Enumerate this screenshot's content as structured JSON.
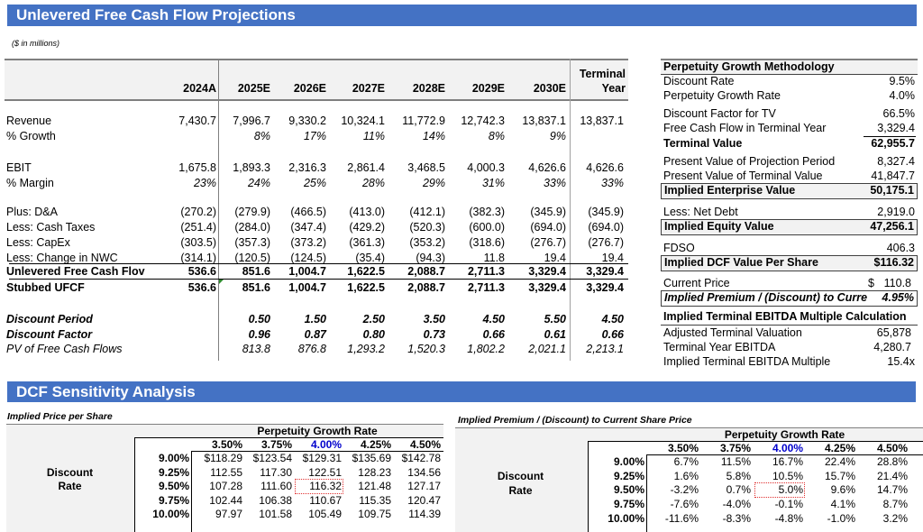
{
  "header": {
    "title": "Unlevered Free Cash Flow Projections",
    "units_note": "($ in millions)"
  },
  "projections": {
    "columns": [
      "2024A",
      "2025E",
      "2026E",
      "2027E",
      "2028E",
      "2029E",
      "2030E"
    ],
    "terminal_header": [
      "Terminal",
      "Year"
    ],
    "rows": [
      {
        "label": "Revenue",
        "values": [
          "7,430.7",
          "7,996.7",
          "9,330.2",
          "10,324.1",
          "11,772.9",
          "12,742.3",
          "13,837.1",
          "13,837.1"
        ],
        "style": "normal"
      },
      {
        "label": "% Growth",
        "values": [
          "",
          "8%",
          "17%",
          "11%",
          "14%",
          "8%",
          "9%",
          ""
        ],
        "style": "pct"
      },
      {
        "label": "EBIT",
        "values": [
          "1,675.8",
          "1,893.3",
          "2,316.3",
          "2,861.4",
          "3,468.5",
          "4,000.3",
          "4,626.6",
          "4,626.6"
        ],
        "style": "normal"
      },
      {
        "label": "% Margin",
        "values": [
          "23%",
          "24%",
          "25%",
          "28%",
          "29%",
          "31%",
          "33%",
          "33%"
        ],
        "style": "pct"
      },
      {
        "label": "Plus: D&A",
        "values": [
          "(270.2)",
          "(279.9)",
          "(466.5)",
          "(413.0)",
          "(412.1)",
          "(382.3)",
          "(345.9)",
          "(345.9)"
        ],
        "style": "normal"
      },
      {
        "label": "Less: Cash Taxes",
        "values": [
          "(251.4)",
          "(284.0)",
          "(347.4)",
          "(429.2)",
          "(520.3)",
          "(600.0)",
          "(694.0)",
          "(694.0)"
        ],
        "style": "normal"
      },
      {
        "label": "Less: CapEx",
        "values": [
          "(303.5)",
          "(357.3)",
          "(373.2)",
          "(361.3)",
          "(353.2)",
          "(318.6)",
          "(276.7)",
          "(276.7)"
        ],
        "style": "normal"
      },
      {
        "label": "Less: Change in NWC",
        "values": [
          "(314.1)",
          "(120.5)",
          "(124.5)",
          "(35.4)",
          "(94.3)",
          "11.8",
          "19.4",
          "19.4"
        ],
        "style": "normal"
      },
      {
        "label": "Unlevered Free Cash Flov",
        "values": [
          "536.6",
          "851.6",
          "1,004.7",
          "1,622.5",
          "2,088.7",
          "2,711.3",
          "3,329.4",
          "3,329.4"
        ],
        "style": "bold"
      },
      {
        "label": "Stubbed UFCF",
        "values": [
          "536.6",
          "851.6",
          "1,004.7",
          "1,622.5",
          "2,088.7",
          "2,711.3",
          "3,329.4",
          "3,329.4"
        ],
        "style": "bold"
      },
      {
        "label": "Discount Period",
        "values": [
          "",
          "0.50",
          "1.50",
          "2.50",
          "3.50",
          "4.50",
          "5.50",
          "4.50"
        ],
        "style": "bolditalic"
      },
      {
        "label": "Discount Factor",
        "values": [
          "",
          "0.96",
          "0.87",
          "0.80",
          "0.73",
          "0.66",
          "0.61",
          "0.66"
        ],
        "style": "bolditalic"
      },
      {
        "label": "PV of Free Cash Flows",
        "values": [
          "",
          "813.8",
          "876.8",
          "1,293.2",
          "1,520.3",
          "1,802.2",
          "2,021.1",
          "2,213.1"
        ],
        "style": "italic"
      }
    ]
  },
  "perpetuity": {
    "title": "Perpetuity Growth Methodology",
    "discount_rate": {
      "label": "Discount Rate",
      "value": "9.5%"
    },
    "growth_rate": {
      "label": "Perpetuity Growth Rate",
      "value": "4.0%"
    },
    "discount_factor_tv": {
      "label": "Discount Factor for TV",
      "value": "66.5%"
    },
    "fcf_terminal": {
      "label": "Free Cash Flow in Terminal Year",
      "value": "3,329.4"
    },
    "terminal_value": {
      "label": "Terminal Value",
      "value": "62,955.7"
    },
    "pv_projection": {
      "label": "Present Value of Projection Period",
      "value": "8,327.4"
    },
    "pv_terminal": {
      "label": "Present Value of Terminal Value",
      "value": "41,847.7"
    },
    "enterprise_value": {
      "label": "Implied Enterprise Value",
      "value": "50,175.1"
    },
    "net_debt": {
      "label": "Less: Net Debt",
      "value": "2,919.0"
    },
    "equity_value": {
      "label": "Implied Equity Value",
      "value": "47,256.1"
    },
    "fdso": {
      "label": "FDSO",
      "value": "406.3"
    },
    "value_per_share": {
      "label": "Implied DCF Value Per Share",
      "value": "$116.32"
    },
    "current_price": {
      "label": "Current Price",
      "currency": "$",
      "value": "110.8"
    },
    "premium": {
      "label": "Implied Premium / (Discount) to Curre",
      "value": "4.95%"
    }
  },
  "ebitda_multiple": {
    "title": "Implied Terminal EBITDA Multiple Calculation",
    "adjusted_tv": {
      "label": "Adjusted Terminal Valuation",
      "value": "65,878"
    },
    "terminal_ebitda": {
      "label": "Terminal Year EBITDA",
      "value": "4,280.7"
    },
    "multiple": {
      "label": "Implied Terminal EBITDA Multiple",
      "value": "15.4x"
    }
  },
  "sensitivity": {
    "title": "DCF Sensitivity Analysis",
    "price_table": {
      "title": "Implied Price per Share",
      "col_header": "Perpetuity Growth Rate",
      "row_header": [
        "Discount",
        "Rate"
      ],
      "cols": [
        "3.50%",
        "3.75%",
        "4.00%",
        "4.25%",
        "4.50%"
      ],
      "rows": [
        {
          "rate": "9.00%",
          "values": [
            "$118.29",
            "$123.54",
            "$129.31",
            "$135.69",
            "$142.78"
          ]
        },
        {
          "rate": "9.25%",
          "values": [
            "112.55",
            "117.30",
            "122.51",
            "128.23",
            "134.56"
          ]
        },
        {
          "rate": "9.50%",
          "values": [
            "107.28",
            "111.60",
            "116.32",
            "121.48",
            "127.17"
          ]
        },
        {
          "rate": "9.75%",
          "values": [
            "102.44",
            "106.38",
            "110.67",
            "115.35",
            "120.47"
          ]
        },
        {
          "rate": "10.00%",
          "values": [
            "97.97",
            "101.58",
            "105.49",
            "109.75",
            "114.39"
          ]
        }
      ]
    },
    "premium_table": {
      "title": "Implied Premium / (Discount) to Current Share Price",
      "col_header": "Perpetuity Growth Rate",
      "row_header": [
        "Discount",
        "Rate"
      ],
      "cols": [
        "3.50%",
        "3.75%",
        "4.00%",
        "4.25%",
        "4.50%"
      ],
      "rows": [
        {
          "rate": "9.00%",
          "values": [
            "6.7%",
            "11.5%",
            "16.7%",
            "22.4%",
            "28.8%"
          ]
        },
        {
          "rate": "9.25%",
          "values": [
            "1.6%",
            "5.8%",
            "10.5%",
            "15.7%",
            "21.4%"
          ]
        },
        {
          "rate": "9.50%",
          "values": [
            "-3.2%",
            "0.7%",
            "5.0%",
            "9.6%",
            "14.7%"
          ]
        },
        {
          "rate": "9.75%",
          "values": [
            "-7.6%",
            "-4.0%",
            "-0.1%",
            "4.1%",
            "8.7%"
          ]
        },
        {
          "rate": "10.00%",
          "values": [
            "-11.6%",
            "-8.3%",
            "-4.8%",
            "-1.0%",
            "3.2%"
          ]
        }
      ]
    }
  },
  "colors": {
    "header_bar": "#4472c4",
    "panel_fill": "#f2f2f2",
    "highlight_col": "#0000cc",
    "highlight_cell_border": "#e03030"
  }
}
